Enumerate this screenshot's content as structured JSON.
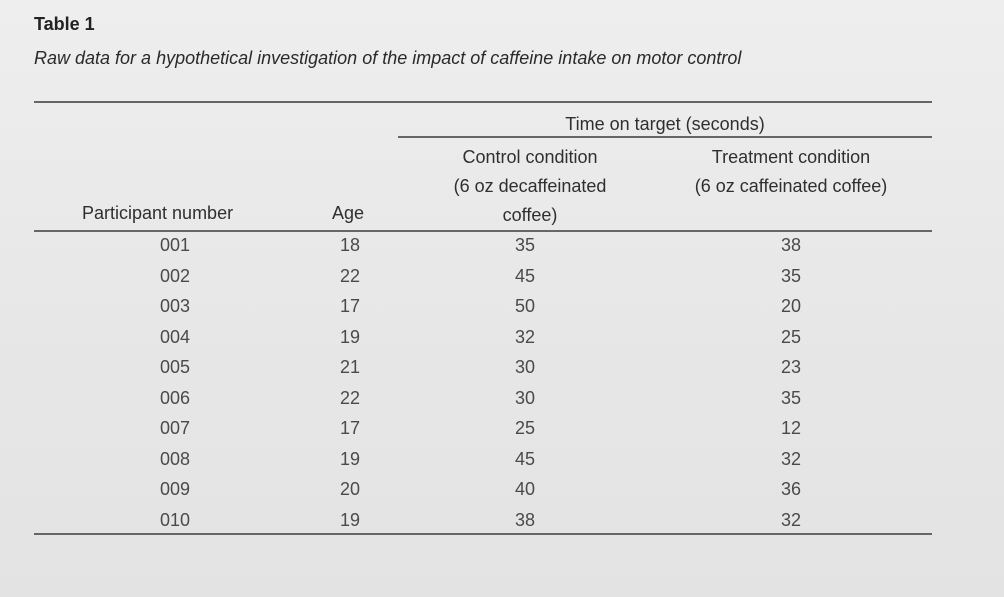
{
  "caption": {
    "label": "Table 1",
    "title": "Raw data for a hypothetical investigation of the impact of caffeine intake on motor control"
  },
  "table": {
    "spanner": "Time on target (seconds)",
    "headers": {
      "participant": "Participant number",
      "age": "Age",
      "control_line1": "Control condition",
      "control_line2": "(6 oz decaffeinated",
      "control_line3": "coffee)",
      "treatment_line1": "Treatment condition",
      "treatment_line2": "(6 oz caffeinated coffee)"
    },
    "rows": [
      {
        "participant": "001",
        "age": "18",
        "control": "35",
        "treatment": "38"
      },
      {
        "participant": "002",
        "age": "22",
        "control": "45",
        "treatment": "35"
      },
      {
        "participant": "003",
        "age": "17",
        "control": "50",
        "treatment": "20"
      },
      {
        "participant": "004",
        "age": "19",
        "control": "32",
        "treatment": "25"
      },
      {
        "participant": "005",
        "age": "21",
        "control": "30",
        "treatment": "23"
      },
      {
        "participant": "006",
        "age": "22",
        "control": "30",
        "treatment": "35"
      },
      {
        "participant": "007",
        "age": "17",
        "control": "25",
        "treatment": "12"
      },
      {
        "participant": "008",
        "age": "19",
        "control": "45",
        "treatment": "32"
      },
      {
        "participant": "009",
        "age": "20",
        "control": "40",
        "treatment": "36"
      },
      {
        "participant": "010",
        "age": "19",
        "control": "38",
        "treatment": "32"
      }
    ]
  }
}
